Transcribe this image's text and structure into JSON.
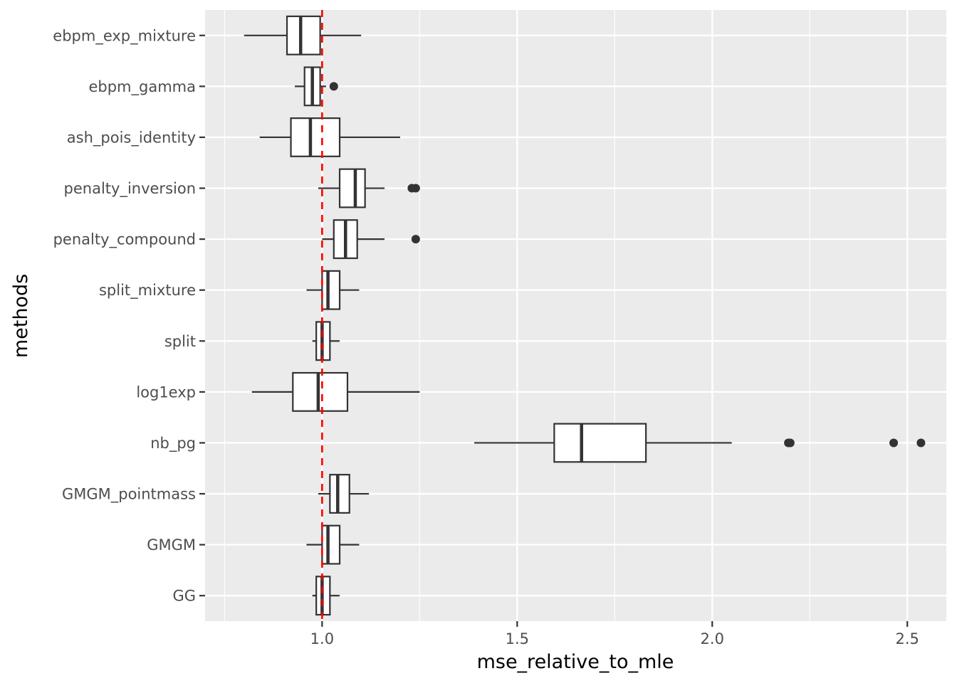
{
  "chart_data": {
    "type": "boxplot",
    "orientation": "horizontal",
    "title": "",
    "xlabel": "mse_relative_to_mle",
    "ylabel": "methods",
    "xlim": [
      0.7,
      2.6
    ],
    "x_ticks": [
      1.0,
      1.5,
      2.0,
      2.5
    ],
    "x_tick_labels": [
      "1.0",
      "1.5",
      "2.0",
      "2.5"
    ],
    "reference_line": {
      "x": 1.0,
      "style": "dashed",
      "color": "#ff0000"
    },
    "grid": true,
    "colors": {
      "panel": "#ebebeb",
      "grid": "#ffffff",
      "box_fill": "#ffffff",
      "box_line": "#333333",
      "outlier": "#333333"
    },
    "series": [
      {
        "name": "ebpm_exp_mixture",
        "whisker_low": 0.8,
        "q1": 0.91,
        "median": 0.945,
        "q3": 0.995,
        "whisker_high": 1.1,
        "outliers": []
      },
      {
        "name": "ebpm_gamma",
        "whisker_low": 0.93,
        "q1": 0.955,
        "median": 0.975,
        "q3": 0.995,
        "whisker_high": 1.01,
        "outliers": [
          1.03
        ]
      },
      {
        "name": "ash_pois_identity",
        "whisker_low": 0.84,
        "q1": 0.92,
        "median": 0.97,
        "q3": 1.045,
        "whisker_high": 1.2,
        "outliers": []
      },
      {
        "name": "penalty_inversion",
        "whisker_low": 0.99,
        "q1": 1.045,
        "median": 1.085,
        "q3": 1.11,
        "whisker_high": 1.16,
        "outliers": [
          1.23,
          1.24
        ]
      },
      {
        "name": "penalty_compound",
        "whisker_low": 1.0,
        "q1": 1.03,
        "median": 1.06,
        "q3": 1.09,
        "whisker_high": 1.16,
        "outliers": [
          1.24
        ]
      },
      {
        "name": "split_mixture",
        "whisker_low": 0.96,
        "q1": 1.0,
        "median": 1.015,
        "q3": 1.045,
        "whisker_high": 1.095,
        "outliers": []
      },
      {
        "name": "split",
        "whisker_low": 0.975,
        "q1": 0.985,
        "median": 1.0,
        "q3": 1.02,
        "whisker_high": 1.045,
        "outliers": []
      },
      {
        "name": "log1exp",
        "whisker_low": 0.82,
        "q1": 0.925,
        "median": 0.99,
        "q3": 1.065,
        "whisker_high": 1.25,
        "outliers": []
      },
      {
        "name": "nb_pg",
        "whisker_low": 1.39,
        "q1": 1.595,
        "median": 1.665,
        "q3": 1.83,
        "whisker_high": 2.05,
        "outliers": [
          2.195,
          2.2,
          2.465,
          2.535
        ]
      },
      {
        "name": "GMGM_pointmass",
        "whisker_low": 0.99,
        "q1": 1.02,
        "median": 1.04,
        "q3": 1.07,
        "whisker_high": 1.12,
        "outliers": []
      },
      {
        "name": "GMGM",
        "whisker_low": 0.96,
        "q1": 1.0,
        "median": 1.015,
        "q3": 1.045,
        "whisker_high": 1.095,
        "outliers": []
      },
      {
        "name": "GG",
        "whisker_low": 0.975,
        "q1": 0.985,
        "median": 1.0,
        "q3": 1.02,
        "whisker_high": 1.045,
        "outliers": []
      }
    ]
  }
}
